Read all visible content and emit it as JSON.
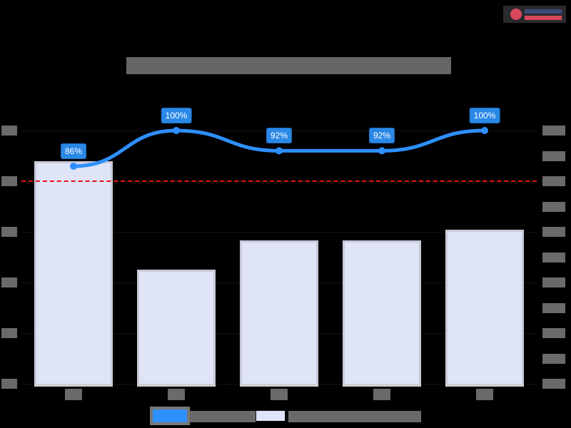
{
  "title": "[obscured title]",
  "logo": {
    "name": "[obscured logo]"
  },
  "axes": {
    "left": {
      "tick_labels": [
        "[obscured]",
        "[obscured]",
        "[obscured]",
        "[obscured]",
        "[obscured]",
        "[obscured]"
      ]
    },
    "right": {
      "tick_labels": [
        "0%",
        "10%",
        "20%",
        "30%",
        "40%",
        "50%",
        "60%",
        "70%",
        "80%",
        "90%",
        "100%"
      ],
      "note": "right-axis labels obscured; scale inferred from line data labels"
    }
  },
  "x_labels": [
    "[obscured]",
    "[obscured]",
    "[obscured]",
    "[obscured]",
    "[obscured]"
  ],
  "line_labels": [
    "86%",
    "100%",
    "92%",
    "92%",
    "100%"
  ],
  "legend": {
    "line_label": "[obscured line series]",
    "bar_label": "[obscured bar series]"
  },
  "colors": {
    "line": "#2e90ff",
    "bar_fill": "#dfe4f7",
    "bar_border": "#c8c9d8",
    "reference_line": "#e8121a",
    "label_bg": "#2a88e6",
    "background": "#000000"
  },
  "chart_data": {
    "type": "bar",
    "title": "[obscured]",
    "categories": [
      "Cat 1",
      "Cat 2",
      "Cat 3",
      "Cat 4",
      "Cat 5"
    ],
    "series": [
      {
        "name": "[obscured bar series]",
        "type": "bar",
        "axis": "left",
        "values": [
          4.4,
          2.25,
          2.83,
          2.83,
          3.04
        ],
        "unit_note": "in left-axis tick units (labels obscured)"
      },
      {
        "name": "[obscured line series]",
        "type": "line",
        "axis": "right",
        "values": [
          86,
          100,
          92,
          92,
          100
        ],
        "unit": "%"
      }
    ],
    "reference_line": {
      "axis": "left",
      "value": 4.0,
      "style": "dashed",
      "color": "#e8121a"
    },
    "ylim_left": [
      0,
      5
    ],
    "ylim_right": [
      0,
      100
    ],
    "grid": true,
    "legend_position": "bottom",
    "xlabel": "",
    "ylabel_left": "",
    "ylabel_right": ""
  }
}
